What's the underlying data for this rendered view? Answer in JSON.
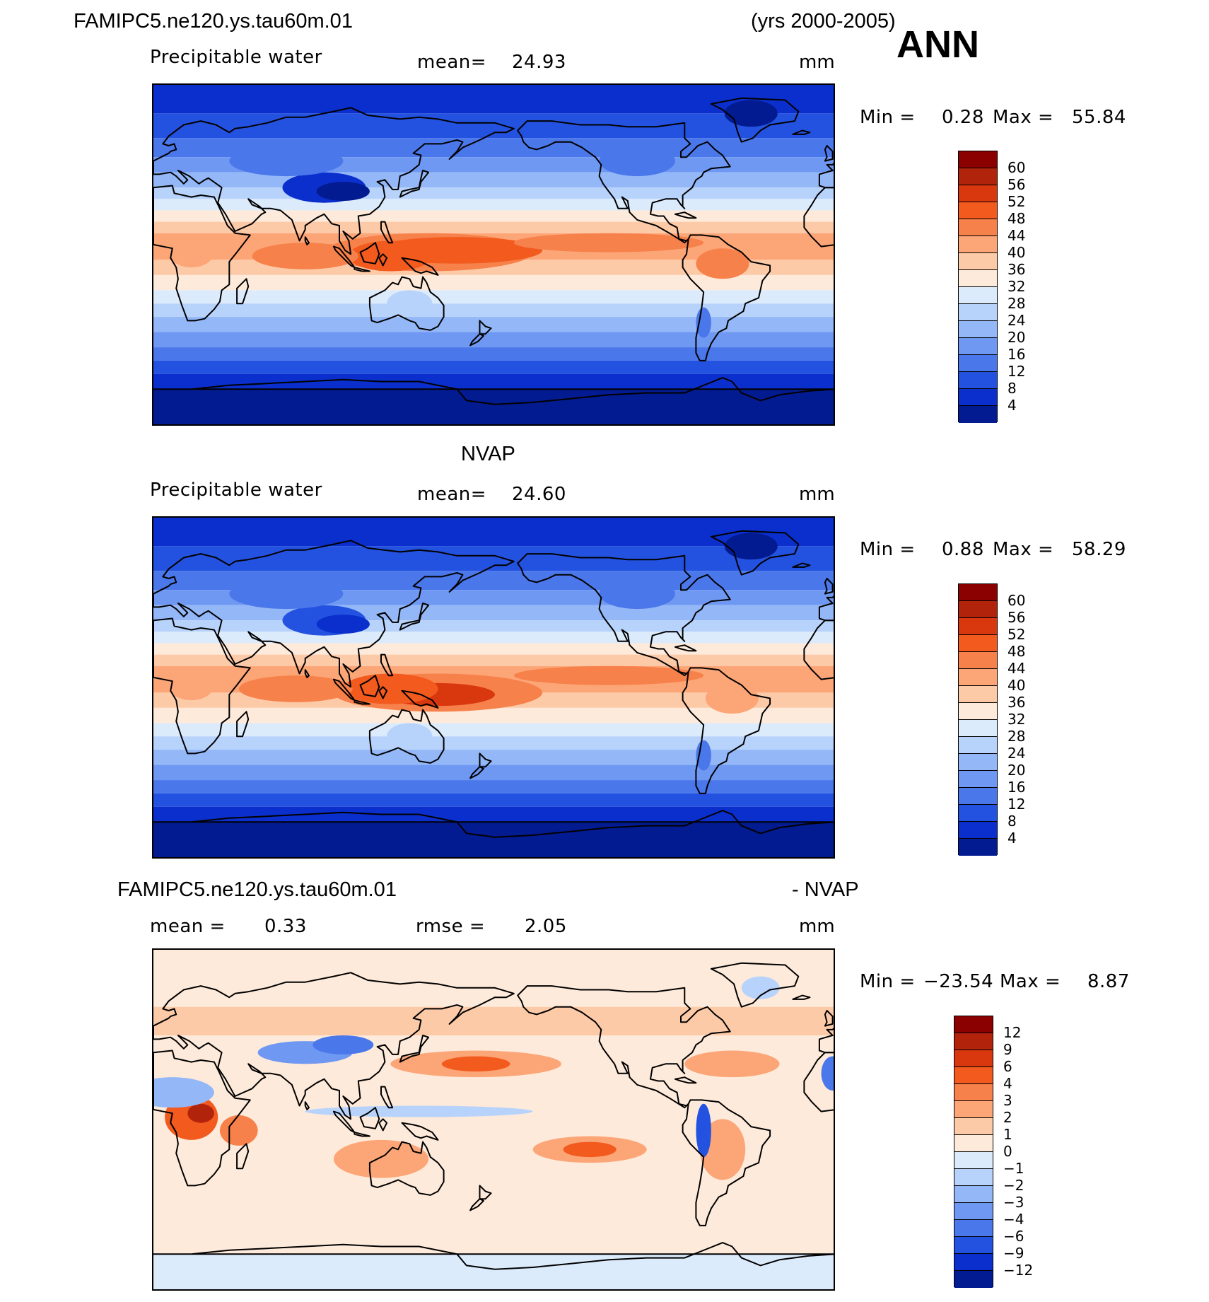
{
  "header": {
    "case_name": "FAMIPC5.ne120.ys.tau60m.01",
    "years": "(yrs 2000-2005)",
    "season": "ANN"
  },
  "panels": [
    {
      "title": "",
      "variable": "Precipitable water",
      "stat_left": "",
      "mean_label": "mean=",
      "mean_value": "24.93",
      "units": "mm",
      "min_label": "Min =",
      "min_value": "0.28",
      "max_label": "Max =",
      "max_value": "55.84"
    },
    {
      "title": "NVAP",
      "variable": "Precipitable water",
      "mean_label": "mean=",
      "mean_value": "24.60",
      "units": "mm",
      "min_label": "Min =",
      "min_value": "0.88",
      "max_label": "Max =",
      "max_value": "58.29"
    },
    {
      "title_left": "FAMIPC5.ne120.ys.tau60m.01",
      "title_right": "- NVAP",
      "mean_label": "mean =",
      "mean_value": "0.33",
      "rmse_label": "rmse =",
      "rmse_value": "2.05",
      "units": "mm",
      "min_label": "Min =",
      "min_value": "−23.54",
      "max_label": "Max =",
      "max_value": "8.87"
    }
  ],
  "chart_data": [
    {
      "type": "heatmap",
      "title": "FAMIPC5.ne120.ys.tau60m.01",
      "subtitle": "Precipitable water",
      "units": "mm",
      "mean": 24.93,
      "min": 0.28,
      "max": 55.84,
      "colorbar_levels": [
        "60",
        "56",
        "52",
        "48",
        "44",
        "40",
        "36",
        "32",
        "28",
        "24",
        "20",
        "16",
        "12",
        "8",
        "4"
      ],
      "colorbar_colors": [
        "#8b0000",
        "#b2230c",
        "#d9380e",
        "#f25a1e",
        "#f7814a",
        "#fca678",
        "#fdcaa8",
        "#feeada",
        "#dcebfc",
        "#b8d3fb",
        "#93b7f7",
        "#6f98f2",
        "#4a77ea",
        "#2452e0",
        "#0a2fcc",
        "#031b90"
      ]
    },
    {
      "type": "heatmap",
      "title": "NVAP",
      "subtitle": "Precipitable water",
      "units": "mm",
      "mean": 24.6,
      "min": 0.88,
      "max": 58.29,
      "colorbar_levels": [
        "60",
        "56",
        "52",
        "48",
        "44",
        "40",
        "36",
        "32",
        "28",
        "24",
        "20",
        "16",
        "12",
        "8",
        "4"
      ],
      "colorbar_colors": [
        "#8b0000",
        "#b2230c",
        "#d9380e",
        "#f25a1e",
        "#f7814a",
        "#fca678",
        "#fdcaa8",
        "#feeada",
        "#dcebfc",
        "#b8d3fb",
        "#93b7f7",
        "#6f98f2",
        "#4a77ea",
        "#2452e0",
        "#0a2fcc",
        "#031b90"
      ]
    },
    {
      "type": "heatmap",
      "title": "FAMIPC5.ne120.ys.tau60m.01 - NVAP",
      "units": "mm",
      "mean": 0.33,
      "rmse": 2.05,
      "min": -23.54,
      "max": 8.87,
      "colorbar_levels": [
        "12",
        "9",
        "6",
        "4",
        "3",
        "2",
        "1",
        "0",
        "−1",
        "−2",
        "−3",
        "−4",
        "−6",
        "−9",
        "−12"
      ],
      "colorbar_colors": [
        "#8b0000",
        "#b2230c",
        "#d9380e",
        "#f25a1e",
        "#f7814a",
        "#fca678",
        "#fdcaa8",
        "#feeada",
        "#dcebfc",
        "#b8d3fb",
        "#93b7f7",
        "#6f98f2",
        "#4a77ea",
        "#2452e0",
        "#0a2fcc",
        "#031b90"
      ]
    }
  ]
}
